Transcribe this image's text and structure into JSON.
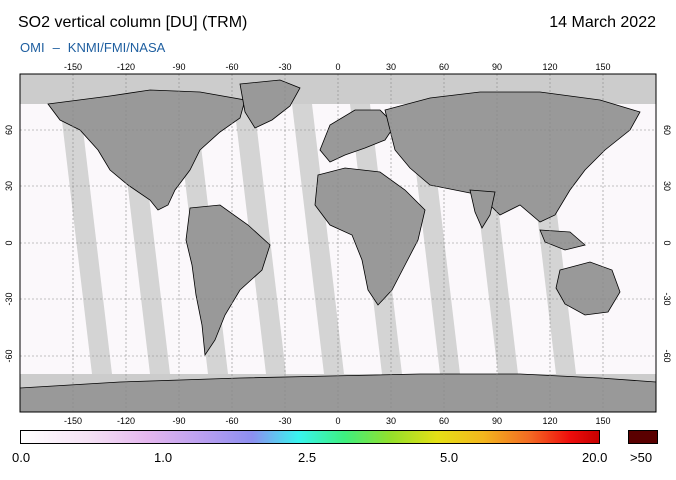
{
  "header": {
    "title": "SO2 vertical column [DU] (TRM)",
    "date": "14 March 2022",
    "credit_left": "OMI",
    "credit_sep": "–",
    "credit_right": "KNMI/FMI/NASA"
  },
  "map": {
    "lon_ticks": [
      "-150",
      "-120",
      "-90",
      "-60",
      "-30",
      "0",
      "30",
      "60",
      "90",
      "120",
      "150"
    ],
    "lat_ticks": [
      "60",
      "30",
      "0",
      "-30",
      "-60"
    ],
    "colors": {
      "background_no_data": "#cccccc",
      "land": "#999999",
      "ocean_data": "#fbf8fb",
      "swath_gap": "#d4d4d4",
      "grid": "#888888"
    }
  },
  "colorbar": {
    "labels": [
      "0.0",
      "1.0",
      "2.5",
      "5.0",
      "20.0",
      ">50"
    ],
    "over_color": "#5a0000"
  }
}
